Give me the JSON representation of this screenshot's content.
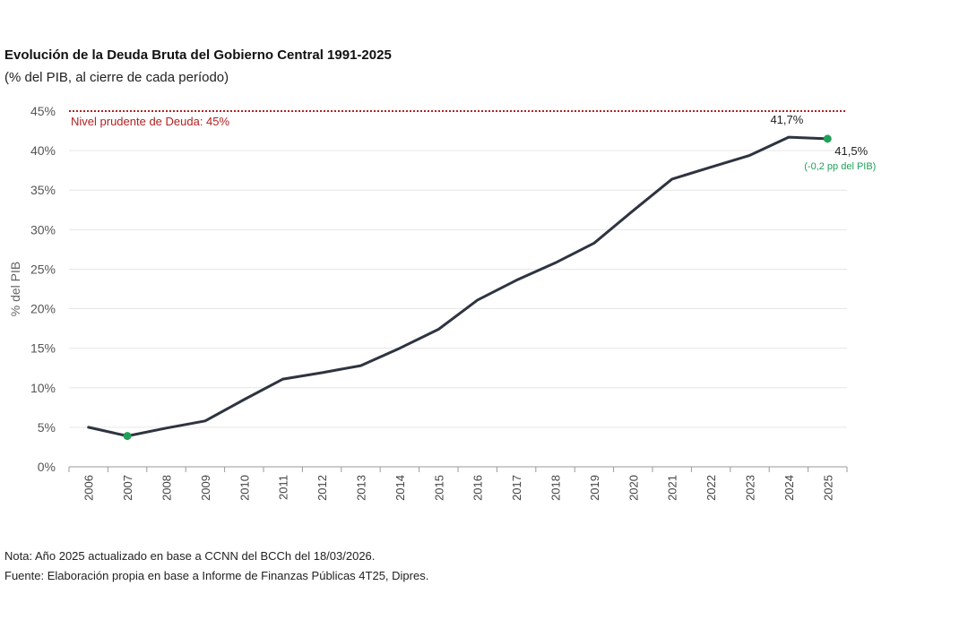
{
  "title": "Evolución de la Deuda Bruta del Gobierno Central 1991-2025",
  "subtitle": "(% del PIB, al cierre de cada período)",
  "chart_data": {
    "type": "line",
    "title": "Evolución de la Deuda Bruta del Gobierno Central 1991-2025",
    "ylabel": "% del PIB",
    "xlabel": "",
    "ylim": [
      0,
      45
    ],
    "yticks": [
      0,
      5,
      10,
      15,
      20,
      25,
      30,
      35,
      40,
      45
    ],
    "ytick_labels": [
      "0%",
      "5%",
      "10%",
      "15%",
      "20%",
      "25%",
      "30%",
      "35%",
      "40%",
      "45%"
    ],
    "categories": [
      "2006",
      "2007",
      "2008",
      "2009",
      "2010",
      "2011",
      "2012",
      "2013",
      "2014",
      "2015",
      "2016",
      "2017",
      "2018",
      "2019",
      "2020",
      "2021",
      "2022",
      "2023",
      "2024",
      "2025"
    ],
    "series": [
      {
        "name": "Deuda Bruta",
        "values": [
          5.0,
          3.9,
          4.9,
          5.8,
          8.5,
          11.1,
          11.9,
          12.8,
          15.0,
          17.4,
          21.1,
          23.6,
          25.8,
          28.3,
          32.4,
          36.4,
          37.9,
          39.4,
          41.7,
          41.5
        ],
        "color": "#2e3440"
      }
    ],
    "markers": [
      {
        "category": "2007",
        "value": 3.9,
        "color": "#22a05a"
      },
      {
        "category": "2025",
        "value": 41.5,
        "color": "#22a05a"
      }
    ],
    "reference_line": {
      "value": 45,
      "label": "Nivel prudente de Deuda: 45%",
      "color": "#b22222"
    },
    "annotations": [
      {
        "category": "2024",
        "text": "41,7%"
      },
      {
        "category": "2025",
        "text": "41,5%"
      },
      {
        "category": "2025",
        "text": "(-0,2 pp del PIB)",
        "color": "#22a05a"
      }
    ]
  },
  "notes": {
    "nota": "Nota: Año 2025 actualizado en base a CCNN del BCCh del 18/03/2026.",
    "fuente": "Fuente: Elaboración propia en base a Informe de Finanzas Públicas 4T25, Dipres."
  }
}
